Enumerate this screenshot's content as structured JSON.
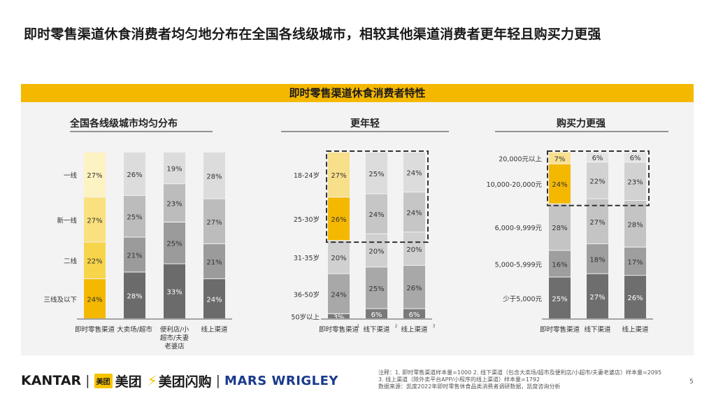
{
  "title": "即时零售渠道休食消费者均匀地分布在全国各线级城市，相较其他渠道消费者更年轻且购买力更强",
  "banner": "即时零售渠道休食消费者特性",
  "colors": {
    "accent": "#f5b800",
    "panel": "#f3f3f3"
  },
  "chart_data": [
    {
      "type": "bar",
      "stacked": true,
      "title": "全国各线级城市均匀分布",
      "categories": [
        "即时零售渠道",
        "大卖场/超市",
        "便利店/小超市/夫妻老婆店",
        "线上渠道"
      ],
      "series": [
        {
          "name": "三线及以下",
          "values": [
            24,
            28,
            33,
            24
          ]
        },
        {
          "name": "二线",
          "values": [
            22,
            21,
            25,
            21
          ]
        },
        {
          "name": "新一线",
          "values": [
            27,
            25,
            23,
            27
          ]
        },
        {
          "name": "一线",
          "values": [
            27,
            26,
            19,
            28
          ]
        }
      ]
    },
    {
      "type": "bar",
      "stacked": true,
      "title": "更年轻",
      "categories": [
        "即时零售渠道",
        "线下渠道",
        "线上渠道"
      ],
      "category_superscripts": [
        "1",
        "2",
        "3"
      ],
      "series": [
        {
          "name": "50岁以上",
          "values": [
            3,
            6,
            6
          ]
        },
        {
          "name": "36-50岁",
          "values": [
            24,
            25,
            26
          ]
        },
        {
          "name": "31-35岁",
          "values": [
            20,
            20,
            20
          ]
        },
        {
          "name": "25-30岁",
          "values": [
            26,
            24,
            24
          ]
        },
        {
          "name": "18-24岁",
          "values": [
            27,
            25,
            24
          ]
        }
      ]
    },
    {
      "type": "bar",
      "stacked": true,
      "title": "购买力更强",
      "categories": [
        "即时零售渠道",
        "线下渠道",
        "线上渠道"
      ],
      "series": [
        {
          "name": "少于5,000元",
          "values": [
            25,
            27,
            26
          ]
        },
        {
          "name": "5,000-5,999元",
          "values": [
            16,
            18,
            17
          ]
        },
        {
          "name": "6,000-9,999元",
          "values": [
            28,
            27,
            28
          ]
        },
        {
          "name": "10,000-20,000元",
          "values": [
            24,
            22,
            23
          ]
        },
        {
          "name": "20,000元以上",
          "values": [
            7,
            6,
            6
          ]
        }
      ]
    }
  ],
  "footer": {
    "kantar": "KANTAR",
    "meituan_badge": "美团",
    "meituan": "美团",
    "shangou": "美团闪购",
    "mars": "MARS WRIGLEY",
    "notes": [
      "注释：1. 即时零售渠道样本量=1000 2. 线下渠道（包含大卖场/超市及便利店/小超市/夫妻老婆店）样本量=2095",
      "3. 线上渠道（除外卖平台APP/小程序的线上渠道）样本量=1792",
      "数据来源：凯度2022年即时零售休食品类消费者调研数据，凯度咨询分析"
    ],
    "page": "5"
  }
}
